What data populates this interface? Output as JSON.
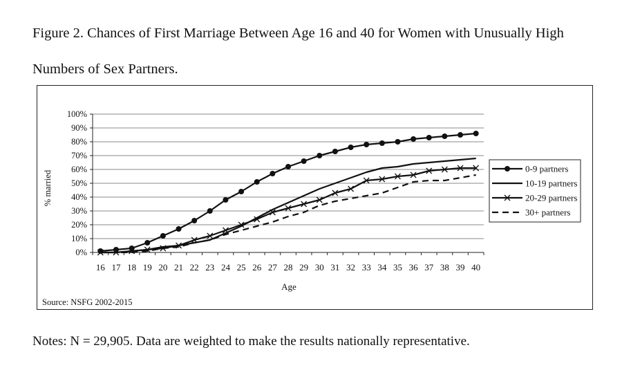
{
  "figure": {
    "title": "Figure 2. Chances of First Marriage Between Age 16 and 40 for Women with Unusually High Numbers of Sex Partners.",
    "source": "Source: NSFG 2002-2015",
    "notes": "Notes: N = 29,905. Data are weighted to make the results nationally representative."
  },
  "chart_data": {
    "type": "line",
    "title": "",
    "xlabel": "Age",
    "ylabel": "% married",
    "x": [
      16,
      17,
      18,
      19,
      20,
      21,
      22,
      23,
      24,
      25,
      26,
      27,
      28,
      29,
      30,
      31,
      32,
      33,
      34,
      35,
      36,
      37,
      38,
      39,
      40
    ],
    "ylim": [
      0,
      100
    ],
    "yticks": [
      "0%",
      "10%",
      "20%",
      "30%",
      "40%",
      "50%",
      "60%",
      "70%",
      "80%",
      "90%",
      "100%"
    ],
    "grid": true,
    "legend_position": "right",
    "series": [
      {
        "name": "0-9 partners",
        "marker": "dot",
        "dash": "solid",
        "values": [
          1,
          2,
          3,
          7,
          12,
          17,
          23,
          30,
          38,
          44,
          51,
          57,
          62,
          66,
          70,
          73,
          76,
          78,
          79,
          80,
          82,
          83,
          84,
          85,
          86
        ]
      },
      {
        "name": "10-19 partners",
        "marker": "none",
        "dash": "solid",
        "values": [
          0,
          0,
          1,
          2,
          4,
          5,
          7,
          9,
          14,
          19,
          25,
          31,
          36,
          41,
          46,
          50,
          54,
          58,
          61,
          62,
          64,
          65,
          66,
          67,
          68
        ]
      },
      {
        "name": "20-29 partners",
        "marker": "x",
        "dash": "solid",
        "values": [
          0,
          0,
          1,
          2,
          3,
          5,
          9,
          12,
          16,
          20,
          24,
          29,
          32,
          35,
          38,
          43,
          46,
          52,
          53,
          55,
          56,
          59,
          60,
          61,
          61
        ]
      },
      {
        "name": "30+ partners",
        "marker": "none",
        "dash": "dashed",
        "values": [
          0,
          0,
          0,
          1,
          3,
          4,
          7,
          9,
          13,
          16,
          19,
          22,
          26,
          29,
          34,
          37,
          39,
          41,
          43,
          47,
          51,
          52,
          52,
          54,
          56
        ]
      }
    ]
  }
}
